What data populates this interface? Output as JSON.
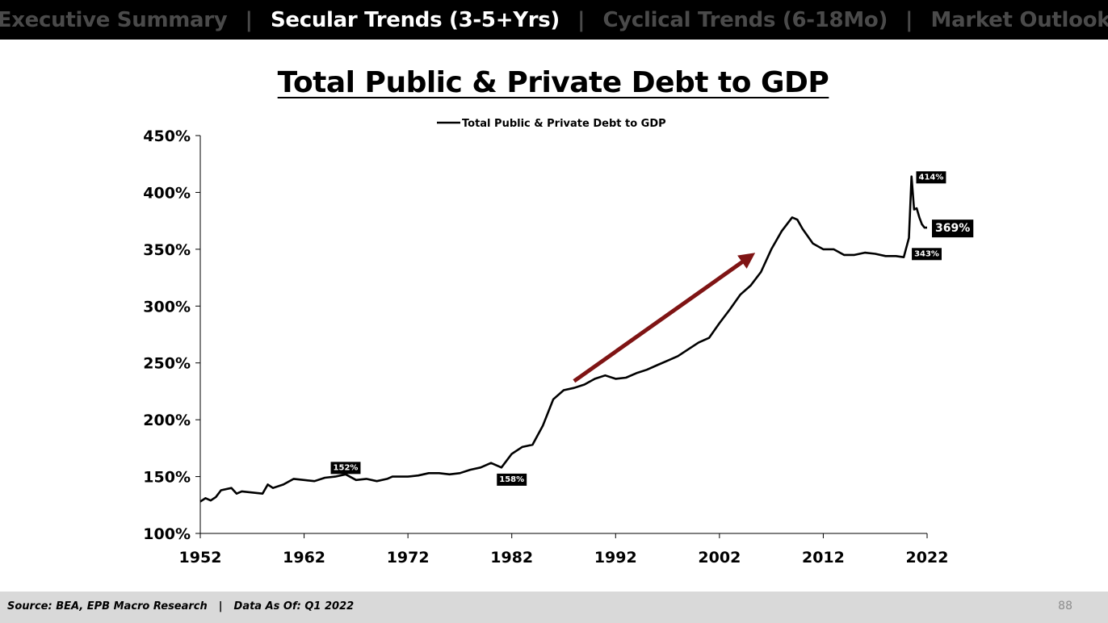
{
  "nav": {
    "items": [
      {
        "label": "Executive Summary",
        "active": false
      },
      {
        "label": "Secular Trends (3-5+Yrs)",
        "active": true
      },
      {
        "label": "Cyclical Trends (6-18Mo)",
        "active": false
      },
      {
        "label": "Market Outlook",
        "active": false
      }
    ],
    "separator": "|"
  },
  "footer": {
    "source": "Source: BEA, EPB Macro Research",
    "separator": "|",
    "data_as_of": "Data As Of: Q1 2022",
    "page_number": "88"
  },
  "colors": {
    "line": "#000000",
    "arrow": "#7f1414",
    "nav_active": "#ffffff",
    "nav_inactive": "#4a4a4a",
    "footer_bg": "#d9d9d9"
  },
  "chart_data": {
    "type": "line",
    "title": "Total Public & Private Debt to GDP",
    "legend": "Total Public & Private Debt to GDP",
    "legend_position": "top-center",
    "xlabel": "",
    "ylabel": "",
    "xlim": [
      1952,
      2022
    ],
    "ylim": [
      100,
      450
    ],
    "xticks": [
      1952,
      1962,
      1972,
      1982,
      1992,
      2002,
      2012,
      2022
    ],
    "yticks": [
      100,
      150,
      200,
      250,
      300,
      350,
      400,
      450
    ],
    "ytick_format": "percent",
    "grid": false,
    "series": [
      {
        "name": "Total Public & Private Debt to GDP",
        "x": [
          1952,
          1952.5,
          1953,
          1953.5,
          1954,
          1955,
          1955.5,
          1956,
          1957,
          1958,
          1958.5,
          1959,
          1960,
          1961,
          1962,
          1963,
          1964,
          1965,
          1966,
          1967,
          1968,
          1969,
          1970,
          1970.5,
          1971,
          1972,
          1973,
          1974,
          1975,
          1976,
          1977,
          1978,
          1979,
          1980,
          1981,
          1982,
          1983,
          1984,
          1985,
          1986,
          1987,
          1988,
          1989,
          1990,
          1991,
          1992,
          1993,
          1994,
          1995,
          1996,
          1997,
          1998,
          1999,
          2000,
          2001,
          2002,
          2003,
          2004,
          2005,
          2006,
          2007,
          2008,
          2009,
          2009.5,
          2010,
          2011,
          2012,
          2013,
          2014,
          2015,
          2016,
          2017,
          2018,
          2019,
          2019.75,
          2020.25,
          2020.5,
          2020.75,
          2021,
          2021.25,
          2021.5,
          2021.75,
          2022
        ],
        "values": [
          128,
          131,
          129,
          132,
          138,
          140,
          135,
          137,
          136,
          135,
          143,
          140,
          143,
          148,
          147,
          146,
          149,
          150,
          152,
          147,
          148,
          146,
          148,
          150,
          150,
          150,
          151,
          153,
          153,
          152,
          153,
          156,
          158,
          162,
          158,
          170,
          176,
          178,
          195,
          218,
          226,
          228,
          231,
          236,
          239,
          236,
          237,
          241,
          244,
          248,
          252,
          256,
          262,
          268,
          272,
          285,
          297,
          310,
          318,
          330,
          350,
          366,
          378,
          376,
          368,
          355,
          350,
          350,
          345,
          345,
          347,
          346,
          344,
          344,
          343,
          360,
          414,
          385,
          386,
          378,
          372,
          369,
          369
        ]
      }
    ],
    "data_labels": [
      {
        "x": 1966,
        "y": 152,
        "text": "152%"
      },
      {
        "x": 1982,
        "y": 158,
        "text": "158%"
      },
      {
        "x": 2020.25,
        "y": 414,
        "text": "414%"
      },
      {
        "x": 2019.75,
        "y": 343,
        "text": "343%"
      },
      {
        "x": 2022,
        "y": 369,
        "text": "369%"
      }
    ],
    "annotations": [
      {
        "type": "arrow",
        "from": {
          "x": 1988,
          "y": 234
        },
        "to": {
          "x": 2005,
          "y": 344
        },
        "color": "#7f1414"
      }
    ]
  }
}
